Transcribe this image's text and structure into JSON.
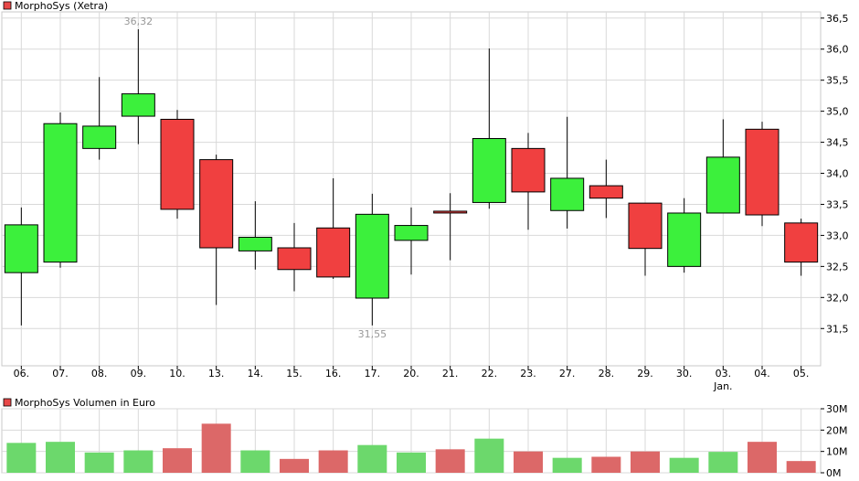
{
  "chart_data": [
    {
      "type": "candlestick",
      "legend": {
        "label": "MorphoSys (Xetra)",
        "color": "#e84848",
        "position": "top-left"
      },
      "categories": [
        "06.",
        "07.",
        "08.",
        "09.",
        "10.",
        "13.",
        "14.",
        "15.",
        "16.",
        "17.",
        "20.",
        "21.",
        "22.",
        "23.",
        "27.",
        "28.",
        "29.",
        "30.",
        "03.",
        "04.",
        "05."
      ],
      "category_sublabels": {
        "03.": "Jan."
      },
      "ohlc": [
        {
          "open": 32.4,
          "high": 33.45,
          "low": 31.55,
          "close": 33.17
        },
        {
          "open": 32.57,
          "high": 34.98,
          "low": 32.48,
          "close": 34.8
        },
        {
          "open": 34.4,
          "high": 35.55,
          "low": 34.22,
          "close": 34.76
        },
        {
          "open": 34.92,
          "high": 36.32,
          "low": 34.47,
          "close": 35.28
        },
        {
          "open": 34.87,
          "high": 35.02,
          "low": 33.27,
          "close": 33.42
        },
        {
          "open": 34.22,
          "high": 34.3,
          "low": 31.88,
          "close": 32.8
        },
        {
          "open": 32.75,
          "high": 33.55,
          "low": 32.45,
          "close": 32.97
        },
        {
          "open": 32.8,
          "high": 33.2,
          "low": 32.1,
          "close": 32.45
        },
        {
          "open": 33.12,
          "high": 33.92,
          "low": 32.3,
          "close": 32.33
        },
        {
          "open": 31.99,
          "high": 33.67,
          "low": 31.55,
          "close": 33.34
        },
        {
          "open": 32.92,
          "high": 33.45,
          "low": 32.37,
          "close": 33.16
        },
        {
          "open": 33.39,
          "high": 33.68,
          "low": 32.6,
          "close": 33.37
        },
        {
          "open": 33.53,
          "high": 36.01,
          "low": 33.43,
          "close": 34.56
        },
        {
          "open": 34.4,
          "high": 34.65,
          "low": 33.09,
          "close": 33.7
        },
        {
          "open": 33.4,
          "high": 34.91,
          "low": 33.11,
          "close": 33.92
        },
        {
          "open": 33.8,
          "high": 34.22,
          "low": 33.28,
          "close": 33.6
        },
        {
          "open": 33.52,
          "high": 33.52,
          "low": 32.35,
          "close": 32.79
        },
        {
          "open": 32.5,
          "high": 33.6,
          "low": 32.4,
          "close": 33.36
        },
        {
          "open": 33.36,
          "high": 34.87,
          "low": 33.36,
          "close": 34.26
        },
        {
          "open": 34.71,
          "high": 34.83,
          "low": 33.15,
          "close": 33.33
        },
        {
          "open": 33.2,
          "high": 33.27,
          "low": 32.35,
          "close": 32.57
        }
      ],
      "annotations": [
        {
          "index": 3,
          "text": "36,32",
          "at": "high"
        },
        {
          "index": 9,
          "text": "31,55",
          "at": "low"
        }
      ],
      "ylim": [
        30.9,
        36.6
      ],
      "yticks": [
        31.5,
        32.0,
        32.5,
        33.0,
        33.5,
        34.0,
        34.5,
        35.0,
        35.5,
        36.0,
        36.5
      ],
      "ytick_labels": [
        "31,5",
        "32,0",
        "32,5",
        "33,0",
        "33,5",
        "34,0",
        "34,5",
        "35,0",
        "35,5",
        "36,0",
        "36,5"
      ],
      "grid": true,
      "colors": {
        "up": "#3cf03c",
        "down": "#f04040",
        "grid": "#d9d9d9",
        "wick": "#000000"
      }
    },
    {
      "type": "bar",
      "legend": {
        "label": "MorphoSys Volumen in Euro",
        "color": "#e84848",
        "position": "top-left"
      },
      "values": [
        14,
        14.5,
        9.5,
        10.5,
        11.5,
        23,
        10.5,
        6.5,
        10.5,
        13,
        9.5,
        11,
        16,
        10,
        7,
        7.5,
        10,
        7,
        9.8,
        14.5,
        5.5
      ],
      "ylim": [
        0,
        30
      ],
      "yticks": [
        0,
        10,
        20,
        30
      ],
      "ytick_labels": [
        "0M",
        "10M",
        "20M",
        "30M"
      ],
      "grid": true,
      "colors": {
        "up": "#6cd86c",
        "down": "#dc6868"
      }
    }
  ]
}
